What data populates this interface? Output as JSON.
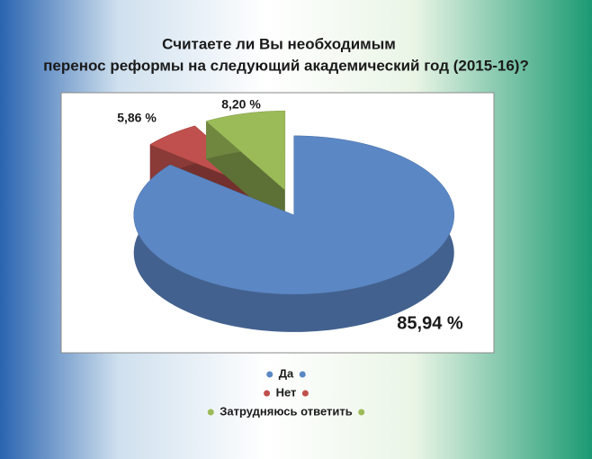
{
  "chart_data": {
    "type": "pie",
    "title": [
      "Считаете ли Вы необходимым",
      "перенос реформы на следующий академический год (2015-16)?"
    ],
    "categories": [
      "Да",
      "Нет",
      "Затрудняюсь ответить"
    ],
    "values": [
      85.94,
      5.86,
      8.2
    ],
    "value_labels": [
      "85,94 %",
      "5,86 %",
      "8,20 %"
    ],
    "colors": [
      "#5b87c5",
      "#c0504d",
      "#9bbb59"
    ]
  }
}
